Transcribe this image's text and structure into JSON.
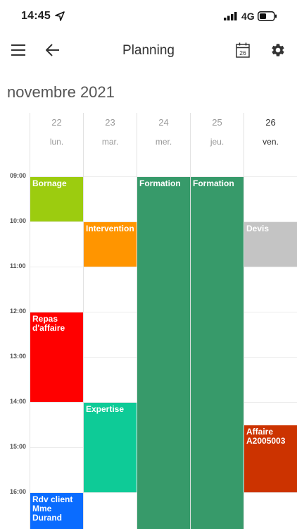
{
  "status_bar": {
    "time": "14:45",
    "network": "4G"
  },
  "nav": {
    "title": "Planning",
    "calendar_icon_day": "26"
  },
  "calendar": {
    "month_label": "novembre 2021",
    "days": [
      {
        "num": "22",
        "name": "lun."
      },
      {
        "num": "23",
        "name": "mar."
      },
      {
        "num": "24",
        "name": "mer."
      },
      {
        "num": "25",
        "name": "jeu."
      },
      {
        "num": "26",
        "name": "ven."
      }
    ],
    "hours": [
      "09:00",
      "10:00",
      "11:00",
      "12:00",
      "13:00",
      "14:00",
      "15:00",
      "16:00"
    ],
    "events": [
      {
        "title": "Bornage",
        "day": 0,
        "start": "09:00",
        "end": "10:00",
        "color": "#9ccc0f"
      },
      {
        "title": "Intervention",
        "day": 1,
        "start": "10:00",
        "end": "11:00",
        "color": "#ff9500"
      },
      {
        "title": "Formation",
        "day": 2,
        "start": "09:00",
        "end": "",
        "color": "#379a6a"
      },
      {
        "title": "Formation",
        "day": 3,
        "start": "09:00",
        "end": "",
        "color": "#379a6a"
      },
      {
        "title": "Devis",
        "day": 4,
        "start": "10:00",
        "end": "11:00",
        "color": "#c4c4c4"
      },
      {
        "title": "Repas d'affaire",
        "day": 0,
        "start": "12:00",
        "end": "14:00",
        "color": "#ff0000"
      },
      {
        "title": "Expertise",
        "day": 1,
        "start": "14:00",
        "end": "16:00",
        "color": "#0ecb97"
      },
      {
        "title": "Affaire A2005003",
        "day": 4,
        "start": "14:30",
        "end": "16:00",
        "color": "#cc3300"
      },
      {
        "title": "Rdv client Mme Durand",
        "day": 0,
        "start": "16:00",
        "end": "",
        "color": "#0a6cff"
      }
    ]
  },
  "colors": {
    "accent": "#379a6a",
    "gridline": "#ececec"
  }
}
